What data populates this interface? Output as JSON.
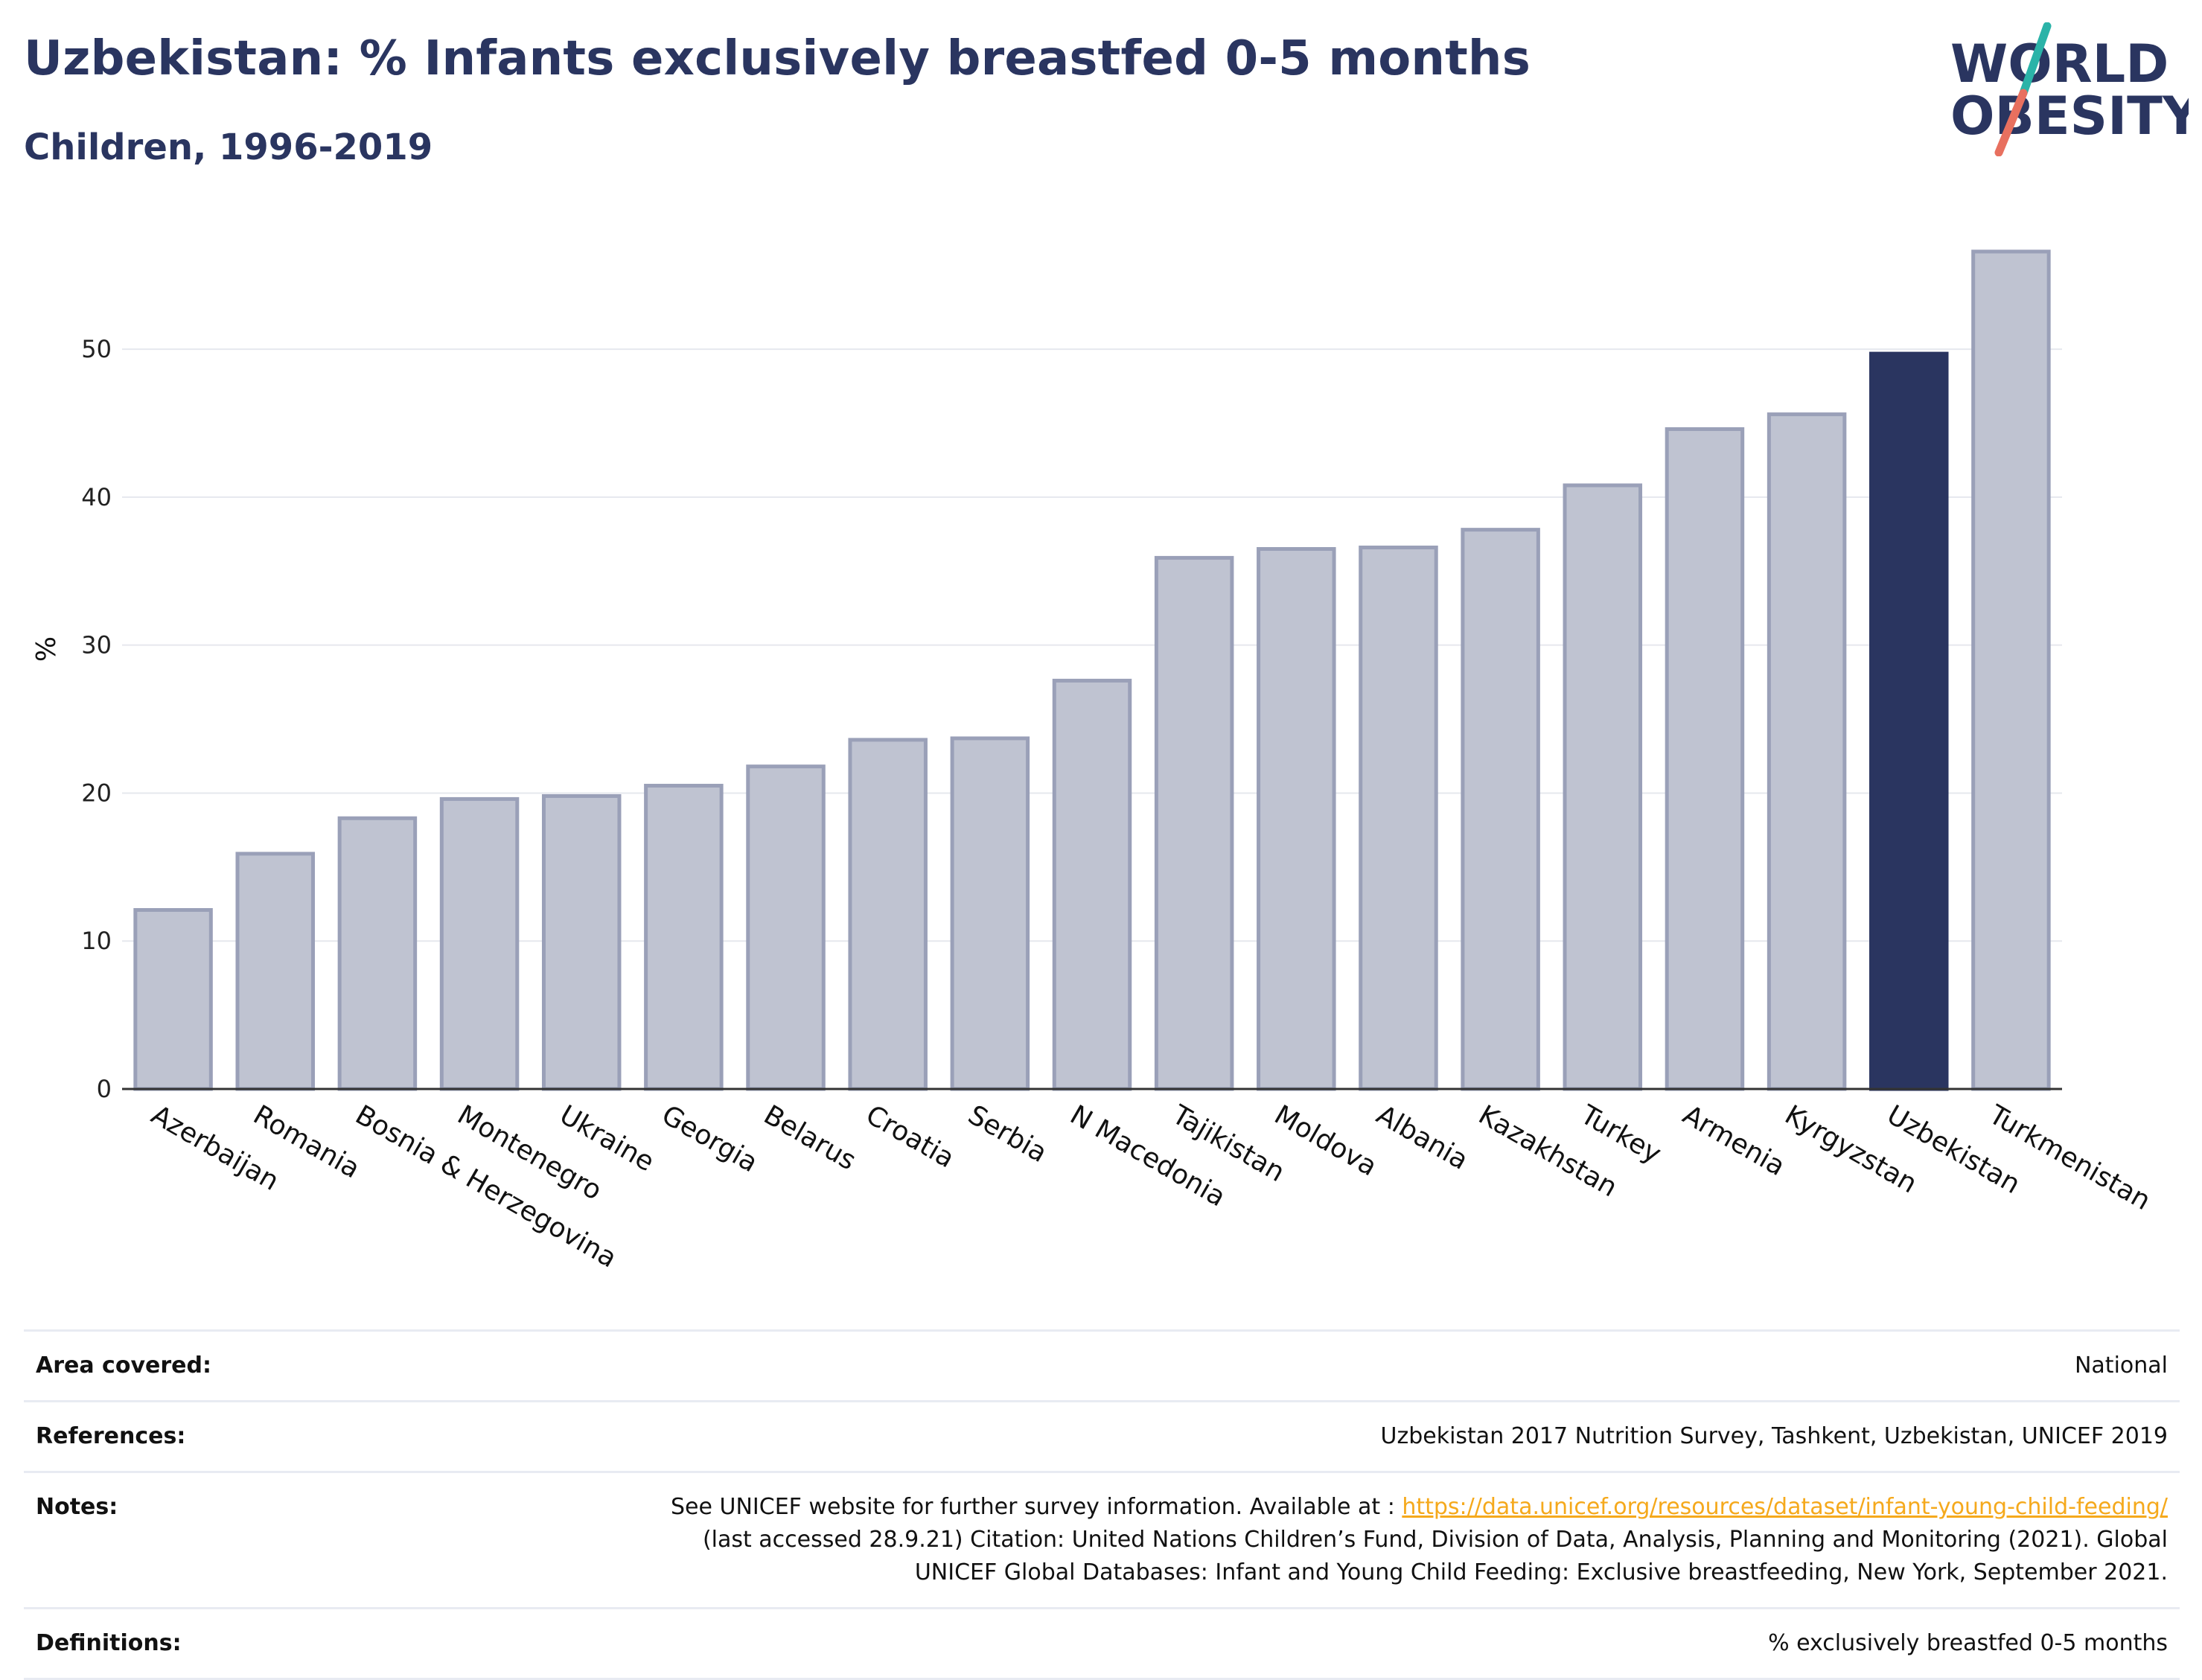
{
  "header": {
    "title": "Uzbekistan: % Infants exclusively breastfed 0-5 months",
    "subtitle": "Children, 1996-2019"
  },
  "logo": {
    "line1": "WORLD",
    "line2": "OBESITY",
    "accent_teal": "#2bb3a8",
    "accent_coral": "#e8705f",
    "text_color": "#2a3560"
  },
  "colors": {
    "bar": "#bfc3d1",
    "bar_border": "#9aa0b8",
    "highlight": "#2a3560",
    "grid": "#e6e8ee",
    "axis": "#333333"
  },
  "chart_data": {
    "type": "bar",
    "ylabel": "%",
    "xlabel": "",
    "ylim": [
      0,
      57
    ],
    "yticks": [
      0,
      10,
      20,
      30,
      40,
      50
    ],
    "grid": true,
    "highlight": "Uzbekistan",
    "categories": [
      "Azerbaijan",
      "Romania",
      "Bosnia & Herzegovina",
      "Montenegro",
      "Ukraine",
      "Georgia",
      "Belarus",
      "Croatia",
      "Serbia",
      "N Macedonia",
      "Tajikistan",
      "Moldova",
      "Albania",
      "Kazakhstan",
      "Turkey",
      "Armenia",
      "Kyrgyzstan",
      "Uzbekistan",
      "Turkmenistan"
    ],
    "values": [
      12.1,
      15.9,
      18.3,
      19.6,
      19.8,
      20.5,
      21.8,
      23.6,
      23.7,
      27.6,
      35.9,
      36.5,
      36.6,
      37.8,
      40.8,
      44.6,
      45.6,
      49.7,
      56.6
    ]
  },
  "info": {
    "area_label": "Area covered:",
    "area_value": "National",
    "references_label": "References:",
    "references_value": "Uzbekistan 2017 Nutrition Survey, Tashkent, Uzbekistan, UNICEF 2019",
    "notes_label": "Notes:",
    "notes_prefix": "See UNICEF website for further survey information. Available at : ",
    "notes_link": "https://data.unicef.org/resources/dataset/infant-young-child-feeding/",
    "notes_line2": "(last accessed 28.9.21) Citation: United Nations Children’s Fund, Division of Data, Analysis, Planning and Monitoring (2021). Global",
    "notes_line3": "UNICEF Global Databases: Infant and Young Child Feeding: Exclusive breastfeeding, New York, September 2021.",
    "definitions_label": "Definitions:",
    "definitions_value": "% exclusively breastfed 0-5 months"
  }
}
